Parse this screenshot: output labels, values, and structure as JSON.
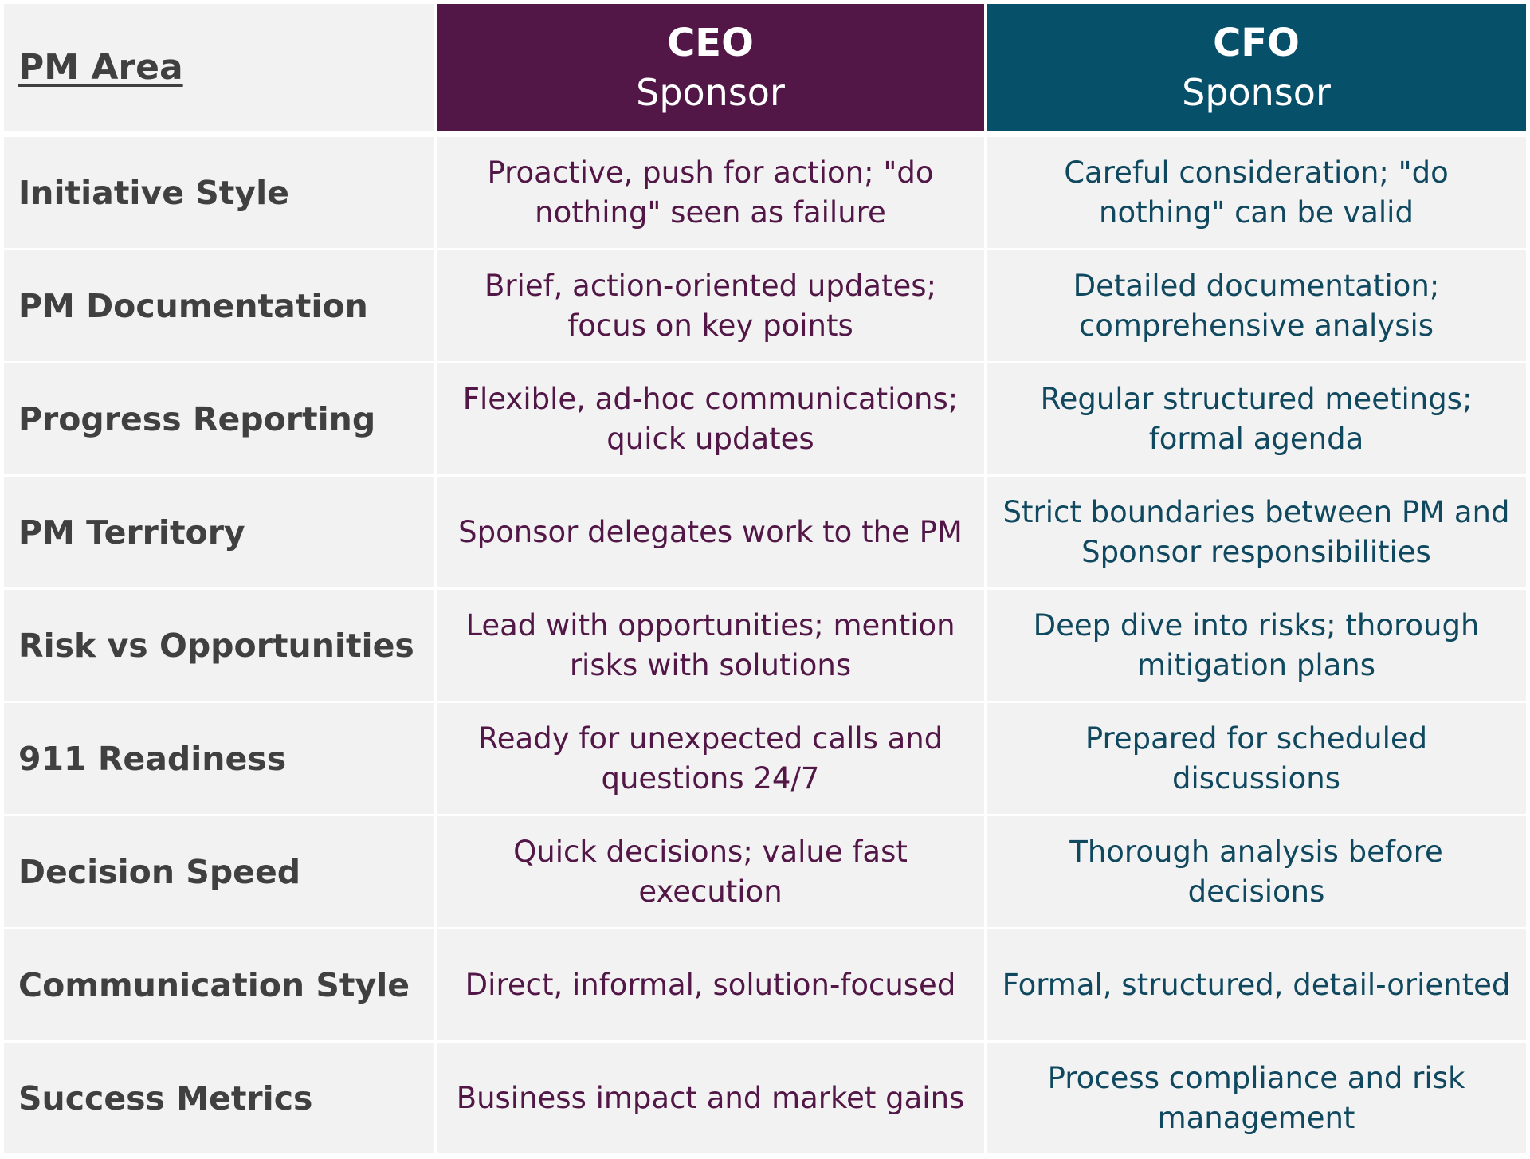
{
  "header": {
    "area_label": "PM Area",
    "ceo": {
      "role": "CEO",
      "sub": "Sponsor",
      "color": "#521647"
    },
    "cfo": {
      "role": "CFO",
      "sub": "Sponsor",
      "color": "#07506a"
    }
  },
  "rows": [
    {
      "area": "Initiative Style",
      "ceo": "Proactive, push for action; \"do nothing\" seen as failure",
      "cfo": "Careful consideration; \"do nothing\" can be valid"
    },
    {
      "area": "PM Documentation",
      "ceo": "Brief, action-oriented updates; focus on key points",
      "cfo": "Detailed documentation; comprehensive analysis"
    },
    {
      "area": "Progress Reporting",
      "ceo": "Flexible, ad-hoc communications; quick updates",
      "cfo": "Regular structured meetings; formal agenda"
    },
    {
      "area": "PM Territory",
      "ceo": "Sponsor delegates work to the PM",
      "cfo": "Strict boundaries between PM and Sponsor responsibilities"
    },
    {
      "area": "Risk vs Opportunities",
      "ceo": "Lead with opportunities; mention risks with solutions",
      "cfo": "Deep dive into risks; thorough mitigation plans"
    },
    {
      "area": "911 Readiness",
      "ceo": "Ready for unexpected calls and questions 24/7",
      "cfo": "Prepared for scheduled discussions"
    },
    {
      "area": "Decision Speed",
      "ceo": "Quick decisions; value fast execution",
      "cfo": "Thorough analysis before decisions"
    },
    {
      "area": "Communication Style",
      "ceo": "Direct, informal, solution-focused",
      "cfo": "Formal, structured, detail-oriented"
    },
    {
      "area": "Success Metrics",
      "ceo": "Business impact and market gains",
      "cfo": "Process compliance and risk management"
    }
  ]
}
